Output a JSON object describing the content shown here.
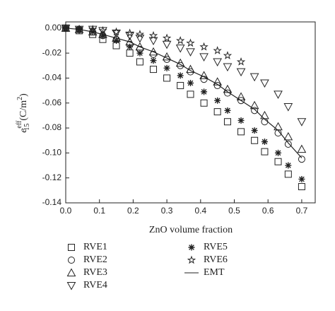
{
  "chart_data": {
    "type": "scatter",
    "xlabel": "ZnO volume fraction",
    "ylabel": [
      "e",
      "eff",
      "15",
      "(C/m",
      "2",
      ")"
    ],
    "xlim": [
      0,
      0.74
    ],
    "ylim": [
      -0.14,
      0.005
    ],
    "xticks": [
      {
        "value": 0,
        "label": "0.0"
      },
      {
        "value": 0.1,
        "label": "0.1"
      },
      {
        "value": 0.2,
        "label": "0.2"
      },
      {
        "value": 0.3,
        "label": "0.3"
      },
      {
        "value": 0.4,
        "label": "0.4"
      },
      {
        "value": 0.5,
        "label": "0.5"
      },
      {
        "value": 0.6,
        "label": "0.6"
      },
      {
        "value": 0.7,
        "label": "0.7"
      }
    ],
    "yticks": [
      {
        "value": 0,
        "label": "0.00"
      },
      {
        "value": -0.02,
        "label": "-0.02"
      },
      {
        "value": -0.04,
        "label": "-0.04"
      },
      {
        "value": -0.06,
        "label": "-0.06"
      },
      {
        "value": -0.08,
        "label": "-0.08"
      },
      {
        "value": -0.1,
        "label": "-0.10"
      },
      {
        "value": -0.12,
        "label": "-0.12"
      },
      {
        "value": -0.14,
        "label": "-0.14"
      }
    ],
    "x": [
      0,
      0.04,
      0.08,
      0.11,
      0.15,
      0.19,
      0.22,
      0.26,
      0.3,
      0.34,
      0.37,
      0.41,
      0.45,
      0.48,
      0.52,
      0.56,
      0.59,
      0.63,
      0.66,
      0.7
    ],
    "series": [
      {
        "name": "RVE1",
        "marker": "square",
        "color": "#222222",
        "values": [
          0,
          -0.002,
          -0.005,
          -0.009,
          -0.014,
          -0.02,
          -0.027,
          -0.033,
          -0.04,
          -0.046,
          -0.053,
          -0.06,
          -0.067,
          -0.075,
          -0.083,
          -0.09,
          -0.099,
          -0.107,
          -0.117,
          -0.127
        ]
      },
      {
        "name": "RVE2",
        "marker": "circle",
        "color": "#222222",
        "values": [
          0,
          -0.001,
          -0.003,
          -0.006,
          -0.009,
          -0.013,
          -0.017,
          -0.021,
          -0.025,
          -0.03,
          -0.035,
          -0.041,
          -0.046,
          -0.052,
          -0.058,
          -0.066,
          -0.075,
          -0.084,
          -0.093,
          -0.105
        ]
      },
      {
        "name": "RVE3",
        "marker": "triangle-up",
        "color": "#222222",
        "values": [
          0,
          -0.001,
          -0.003,
          -0.005,
          -0.008,
          -0.011,
          -0.015,
          -0.019,
          -0.023,
          -0.028,
          -0.033,
          -0.038,
          -0.043,
          -0.049,
          -0.055,
          -0.062,
          -0.07,
          -0.079,
          -0.087,
          -0.097
        ]
      },
      {
        "name": "RVE4",
        "marker": "triangle-down",
        "color": "#222222",
        "values": [
          0,
          -0.001,
          -0.001,
          -0.002,
          -0.004,
          -0.006,
          -0.008,
          -0.01,
          -0.013,
          -0.016,
          -0.019,
          -0.023,
          -0.027,
          -0.031,
          -0.035,
          -0.039,
          -0.044,
          -0.053,
          -0.063,
          -0.075
        ]
      },
      {
        "name": "RVE5",
        "marker": "asterisk",
        "color": "#222222",
        "values": [
          0,
          -0.001,
          -0.003,
          -0.006,
          -0.01,
          -0.015,
          -0.02,
          -0.026,
          -0.032,
          -0.038,
          -0.044,
          -0.051,
          -0.058,
          -0.066,
          -0.074,
          -0.082,
          -0.091,
          -0.1,
          -0.11,
          -0.121
        ]
      },
      {
        "name": "RVE6",
        "marker": "star",
        "color": "#222222",
        "values": [
          0,
          -0.001,
          -0.001,
          -0.002,
          -0.003,
          -0.004,
          -0.005,
          -0.006,
          -0.008,
          -0.01,
          -0.012,
          -0.015,
          -0.018,
          -0.022,
          -0.027,
          null,
          null,
          null,
          null,
          null
        ]
      },
      {
        "name": "EMT",
        "marker": "line",
        "color": "#222222",
        "values": [
          0,
          -0.001,
          -0.003,
          -0.005,
          -0.008,
          -0.011,
          -0.015,
          -0.019,
          -0.024,
          -0.029,
          -0.034,
          -0.039,
          -0.045,
          -0.051,
          -0.058,
          -0.065,
          -0.073,
          -0.082,
          -0.092,
          -0.104
        ]
      }
    ]
  }
}
